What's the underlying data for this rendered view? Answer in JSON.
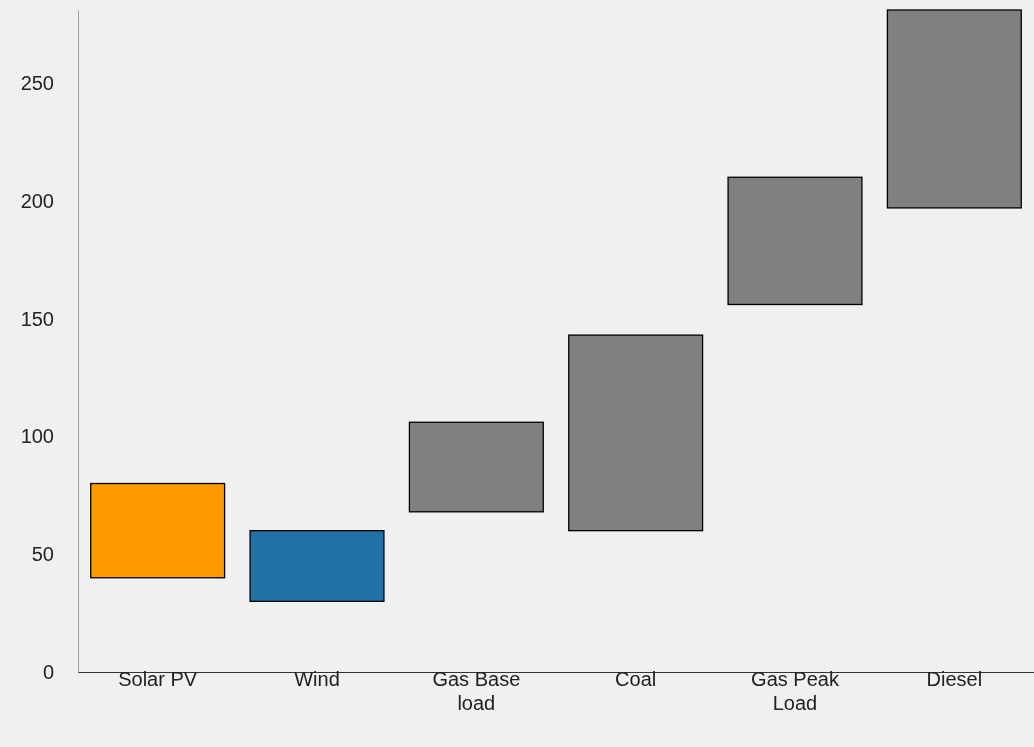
{
  "chart_data": {
    "type": "bar",
    "categories": [
      "Solar PV",
      "Wind",
      "Gas Base load",
      "Coal",
      "Gas Peak Load",
      "Diesel"
    ],
    "values": [
      40,
      30,
      38,
      83,
      54,
      84
    ],
    "base": [
      40,
      30,
      68,
      60,
      156,
      197
    ],
    "colors": [
      "#ff9900",
      "#2271a6",
      "#808080",
      "#808080",
      "#808080",
      "#808080"
    ],
    "ylim": [
      0,
      281
    ],
    "yticks": [
      0,
      50,
      100,
      150,
      200,
      250
    ],
    "grid": false
  }
}
